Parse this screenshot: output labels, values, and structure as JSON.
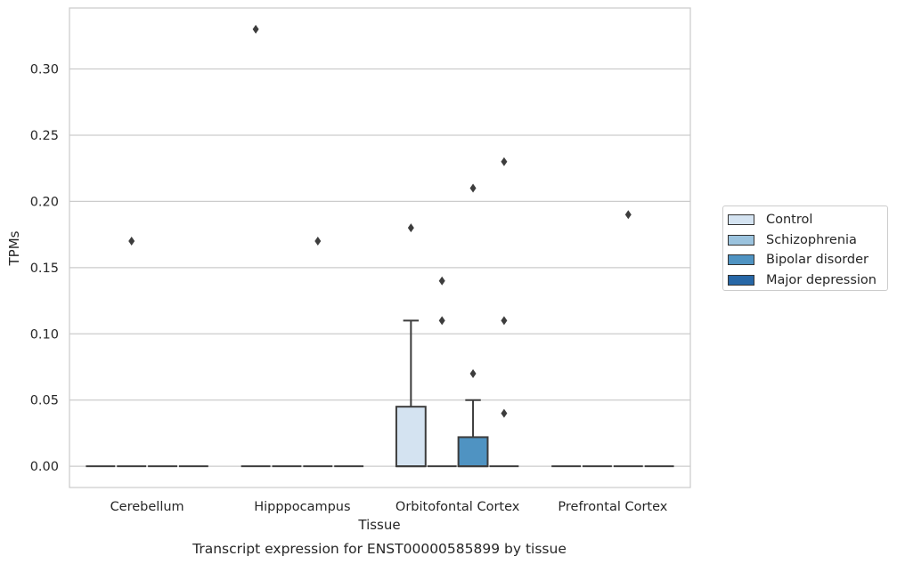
{
  "chart_data": {
    "type": "box",
    "title": "Transcript expression for ENST00000585899 by tissue",
    "xlabel": "Tissue",
    "ylabel": "TPMs",
    "categories": [
      "Cerebellum",
      "Hipppocampus",
      "Orbitofontal Cortex",
      "Prefrontal Cortex"
    ],
    "hue_order": [
      "Control",
      "Schizophrenia",
      "Bipolar disorder",
      "Major depression"
    ],
    "colors": {
      "Control": "#d4e3f1",
      "Schizophrenia": "#9bc3de",
      "Bipolar disorder": "#4f93c2",
      "Major depression": "#2767a6"
    },
    "ylim": [
      -0.016,
      0.346
    ],
    "yticks": [
      "0.00",
      "0.05",
      "0.10",
      "0.15",
      "0.20",
      "0.25",
      "0.30"
    ],
    "grid": true,
    "legend_position": "right-outside",
    "boxes": [
      {
        "category": "Cerebellum",
        "group": "Control",
        "whisker_low": 0,
        "q1": 0,
        "median": 0,
        "q3": 0,
        "whisker_high": 0,
        "outliers": []
      },
      {
        "category": "Cerebellum",
        "group": "Schizophrenia",
        "whisker_low": 0,
        "q1": 0,
        "median": 0,
        "q3": 0,
        "whisker_high": 0,
        "outliers": [
          0.17
        ]
      },
      {
        "category": "Cerebellum",
        "group": "Bipolar disorder",
        "whisker_low": 0,
        "q1": 0,
        "median": 0,
        "q3": 0,
        "whisker_high": 0,
        "outliers": []
      },
      {
        "category": "Cerebellum",
        "group": "Major depression",
        "whisker_low": 0,
        "q1": 0,
        "median": 0,
        "q3": 0,
        "whisker_high": 0,
        "outliers": []
      },
      {
        "category": "Hipppocampus",
        "group": "Control",
        "whisker_low": 0,
        "q1": 0,
        "median": 0,
        "q3": 0,
        "whisker_high": 0,
        "outliers": [
          0.33
        ]
      },
      {
        "category": "Hipppocampus",
        "group": "Schizophrenia",
        "whisker_low": 0,
        "q1": 0,
        "median": 0,
        "q3": 0,
        "whisker_high": 0,
        "outliers": []
      },
      {
        "category": "Hipppocampus",
        "group": "Bipolar disorder",
        "whisker_low": 0,
        "q1": 0,
        "median": 0,
        "q3": 0,
        "whisker_high": 0,
        "outliers": [
          0.17
        ]
      },
      {
        "category": "Hipppocampus",
        "group": "Major depression",
        "whisker_low": 0,
        "q1": 0,
        "median": 0,
        "q3": 0,
        "whisker_high": 0,
        "outliers": []
      },
      {
        "category": "Orbitofontal Cortex",
        "group": "Control",
        "whisker_low": 0,
        "q1": 0,
        "median": 0,
        "q3": 0.045,
        "whisker_high": 0.11,
        "outliers": [
          0.18
        ]
      },
      {
        "category": "Orbitofontal Cortex",
        "group": "Schizophrenia",
        "whisker_low": 0,
        "q1": 0,
        "median": 0,
        "q3": 0,
        "whisker_high": 0,
        "outliers": [
          0.11,
          0.14
        ]
      },
      {
        "category": "Orbitofontal Cortex",
        "group": "Bipolar disorder",
        "whisker_low": 0,
        "q1": 0,
        "median": 0,
        "q3": 0.022,
        "whisker_high": 0.05,
        "outliers": [
          0.07,
          0.21
        ]
      },
      {
        "category": "Orbitofontal Cortex",
        "group": "Major depression",
        "whisker_low": 0,
        "q1": 0,
        "median": 0,
        "q3": 0,
        "whisker_high": 0,
        "outliers": [
          0.04,
          0.11,
          0.23
        ]
      },
      {
        "category": "Prefrontal Cortex",
        "group": "Control",
        "whisker_low": 0,
        "q1": 0,
        "median": 0,
        "q3": 0,
        "whisker_high": 0,
        "outliers": []
      },
      {
        "category": "Prefrontal Cortex",
        "group": "Schizophrenia",
        "whisker_low": 0,
        "q1": 0,
        "median": 0,
        "q3": 0,
        "whisker_high": 0,
        "outliers": []
      },
      {
        "category": "Prefrontal Cortex",
        "group": "Bipolar disorder",
        "whisker_low": 0,
        "q1": 0,
        "median": 0,
        "q3": 0,
        "whisker_high": 0,
        "outliers": [
          0.19
        ]
      },
      {
        "category": "Prefrontal Cortex",
        "group": "Major depression",
        "whisker_low": 0,
        "q1": 0,
        "median": 0,
        "q3": 0,
        "whisker_high": 0,
        "outliers": []
      }
    ]
  },
  "legend": {
    "items": [
      {
        "label": "Control",
        "color": "#d4e3f1"
      },
      {
        "label": "Schizophrenia",
        "color": "#9bc3de"
      },
      {
        "label": "Bipolar disorder",
        "color": "#4f93c2"
      },
      {
        "label": "Major depression",
        "color": "#2767a6"
      }
    ]
  }
}
